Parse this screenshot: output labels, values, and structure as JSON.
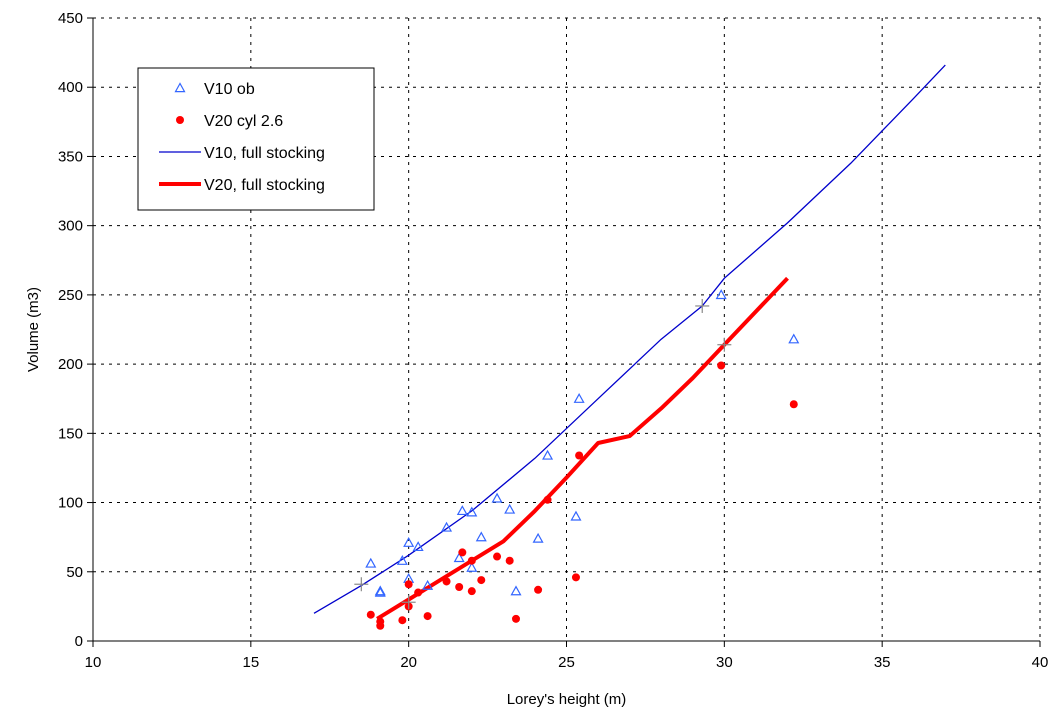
{
  "chart_data": {
    "type": "scatter",
    "xlabel": "Lorey's height (m)",
    "ylabel": "Volume (m3)",
    "xlim": [
      10,
      40
    ],
    "ylim": [
      0,
      450
    ],
    "xticks": [
      10,
      15,
      20,
      25,
      30,
      35,
      40
    ],
    "yticks": [
      0,
      50,
      100,
      150,
      200,
      250,
      300,
      350,
      400,
      450
    ],
    "xtick_labels": [
      "10",
      "15",
      "20",
      "25",
      "30",
      "35",
      "40"
    ],
    "ytick_labels": [
      "0",
      "50",
      "100",
      "150",
      "200",
      "250",
      "300",
      "350",
      "400",
      "450"
    ],
    "grid": "dashed",
    "legend_position": "top-left",
    "series": [
      {
        "name": "V10 ob",
        "kind": "scatter",
        "marker": "open-triangle",
        "color": "#3366ff",
        "points": [
          [
            18.8,
            56
          ],
          [
            19.1,
            36
          ],
          [
            19.1,
            35
          ],
          [
            19.8,
            58
          ],
          [
            20.0,
            71
          ],
          [
            20.0,
            45
          ],
          [
            20.3,
            68
          ],
          [
            20.6,
            40
          ],
          [
            21.2,
            82
          ],
          [
            21.6,
            60
          ],
          [
            21.7,
            94
          ],
          [
            22.0,
            93
          ],
          [
            22.0,
            53
          ],
          [
            22.3,
            75
          ],
          [
            22.8,
            103
          ],
          [
            23.2,
            95
          ],
          [
            23.4,
            36
          ],
          [
            24.1,
            74
          ],
          [
            24.4,
            134
          ],
          [
            25.3,
            90
          ],
          [
            25.4,
            175
          ],
          [
            29.9,
            250
          ],
          [
            32.2,
            218
          ]
        ]
      },
      {
        "name": "V20 cyl 2.6",
        "kind": "scatter",
        "marker": "filled-circle",
        "color": "#ff0000",
        "points": [
          [
            18.8,
            19
          ],
          [
            19.1,
            11
          ],
          [
            19.1,
            14
          ],
          [
            19.8,
            15
          ],
          [
            20.0,
            41
          ],
          [
            20.0,
            25
          ],
          [
            20.3,
            35
          ],
          [
            20.6,
            18
          ],
          [
            21.2,
            43
          ],
          [
            21.6,
            39
          ],
          [
            21.7,
            64
          ],
          [
            22.0,
            36
          ],
          [
            22.0,
            58
          ],
          [
            22.3,
            44
          ],
          [
            22.8,
            61
          ],
          [
            23.2,
            58
          ],
          [
            23.4,
            16
          ],
          [
            24.1,
            37
          ],
          [
            24.4,
            102
          ],
          [
            25.3,
            46
          ],
          [
            25.4,
            134
          ],
          [
            29.9,
            199
          ],
          [
            32.2,
            171
          ]
        ]
      },
      {
        "name": "V10, full stocking",
        "kind": "line",
        "color": "#0000cc",
        "points": [
          [
            17,
            20
          ],
          [
            18.5,
            40
          ],
          [
            20,
            62
          ],
          [
            22,
            94
          ],
          [
            24,
            132
          ],
          [
            26,
            175
          ],
          [
            28,
            218
          ],
          [
            29.3,
            242
          ],
          [
            30,
            262
          ],
          [
            32,
            302
          ],
          [
            34,
            345
          ],
          [
            36,
            392
          ],
          [
            37,
            416
          ]
        ]
      },
      {
        "name": "V20, full stocking",
        "kind": "line",
        "color": "#ff0000",
        "points": [
          [
            19,
            16
          ],
          [
            20,
            30
          ],
          [
            21,
            44
          ],
          [
            22,
            58
          ],
          [
            23,
            72
          ],
          [
            24,
            94
          ],
          [
            25,
            118
          ],
          [
            26,
            143
          ],
          [
            27,
            148
          ],
          [
            28,
            168
          ],
          [
            29,
            190
          ],
          [
            30,
            214
          ],
          [
            31,
            238
          ],
          [
            32,
            262
          ]
        ]
      },
      {
        "kind": "markers",
        "marker": "cross",
        "color": "#888888",
        "points": [
          [
            18.5,
            41
          ],
          [
            20.0,
            28
          ],
          [
            29.3,
            242
          ],
          [
            30.0,
            214
          ]
        ]
      }
    ]
  }
}
